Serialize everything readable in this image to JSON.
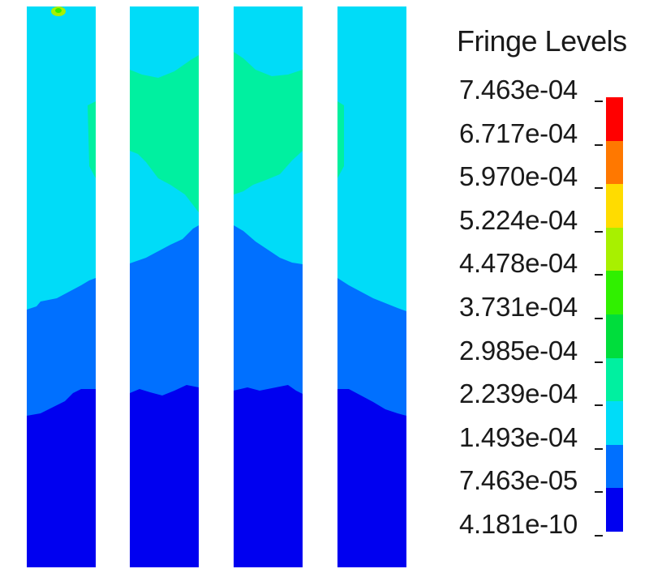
{
  "legend": {
    "title": "Fringe Levels",
    "levels": [
      "7.463e-04",
      "6.717e-04",
      "5.970e-04",
      "5.224e-04",
      "4.478e-04",
      "3.731e-04",
      "2.985e-04",
      "2.239e-04",
      "1.493e-04",
      "7.463e-05",
      "4.181e-10"
    ],
    "band_colors": [
      "#ff0000",
      "#ff7800",
      "#ffdc00",
      "#a8f000",
      "#30f000",
      "#00dd3c",
      "#00f0a0",
      "#00dcf8",
      "#0070ff",
      "#0000f0"
    ]
  },
  "colors": {
    "band_0": "#0000f0",
    "band_1": "#0070ff",
    "band_2": "#00dcf8",
    "band_3": "#00f0a0",
    "hotspot": "#a8f000"
  },
  "columns_count": 4
}
